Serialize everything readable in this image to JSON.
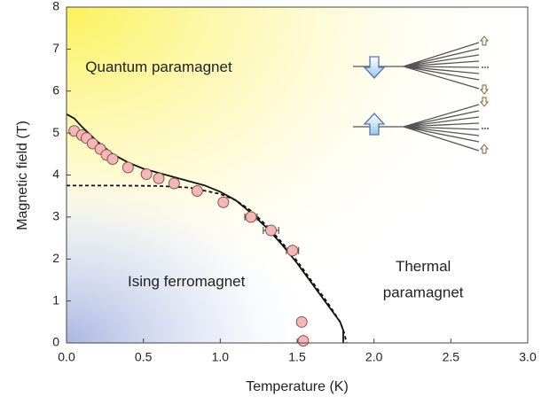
{
  "chart_data": {
    "type": "scatter",
    "x_label": "Temperature (K)",
    "y_label": "Magnetic  field (T)",
    "xlim": [
      0,
      3
    ],
    "ylim": [
      0,
      8
    ],
    "xticks": [
      {
        "value": 0,
        "label": "0.0"
      },
      0.5,
      {
        "value": 1,
        "label": "1.0"
      },
      1.5,
      {
        "value": 2,
        "label": "2.0"
      },
      2.5,
      {
        "value": 3,
        "label": "3.0"
      }
    ],
    "yticks": [
      0,
      1,
      2,
      3,
      4,
      5,
      6,
      7,
      8
    ],
    "annotations": [
      {
        "text": "Quantum paramagnet",
        "x": 0.6,
        "y": 6.55,
        "color": "#b8952e"
      },
      {
        "text": "Ising ferromagnet",
        "x": 0.78,
        "y": 1.45,
        "color": "#4a68b0"
      },
      {
        "text": "Thermal",
        "x": 2.32,
        "y": 1.8,
        "color": "#e8823a"
      },
      {
        "text": "paramagnet",
        "x": 2.32,
        "y": 1.18,
        "color": "#e8823a"
      }
    ],
    "series": [
      {
        "type": "scatter",
        "color": "#f2b8b8",
        "x": [
          0.05,
          0.1,
          0.13,
          0.17,
          0.22,
          0.26,
          0.3,
          0.4,
          0.52,
          0.6,
          0.7,
          0.85,
          1.02,
          1.2,
          1.33,
          1.47,
          1.53,
          1.54
        ],
        "values": [
          5.05,
          4.95,
          4.88,
          4.75,
          4.62,
          4.48,
          4.38,
          4.18,
          4.02,
          3.92,
          3.8,
          3.62,
          3.35,
          3.0,
          2.68,
          2.2,
          0.5,
          0.05
        ],
        "xerr": [
          null,
          null,
          null,
          null,
          null,
          null,
          null,
          null,
          null,
          null,
          null,
          null,
          null,
          0.04,
          0.05,
          0.04,
          null,
          null
        ]
      },
      {
        "type": "line",
        "color": "#111111",
        "dashed": false,
        "x": [
          0,
          0.05,
          0.1,
          0.2,
          0.3,
          0.4,
          0.5,
          0.6,
          0.7,
          0.8,
          0.9,
          1.0,
          1.1,
          1.2,
          1.3,
          1.4,
          1.5,
          1.6,
          1.7,
          1.78,
          1.8,
          1.8
        ],
        "values": [
          5.45,
          5.35,
          5.15,
          4.8,
          4.5,
          4.3,
          4.15,
          4.05,
          3.95,
          3.85,
          3.75,
          3.6,
          3.4,
          3.1,
          2.75,
          2.35,
          1.9,
          1.4,
          0.9,
          0.5,
          0.3,
          0
        ]
      },
      {
        "type": "line",
        "color": "#111111",
        "dashed": true,
        "x": [
          0,
          0.3,
          0.6,
          0.8,
          1.0,
          1.1,
          1.2,
          1.3,
          1.4,
          1.5,
          1.6,
          1.7,
          1.78,
          1.81,
          1.82
        ],
        "values": [
          3.75,
          3.75,
          3.74,
          3.7,
          3.55,
          3.4,
          3.15,
          2.8,
          2.4,
          1.95,
          1.45,
          0.95,
          0.5,
          0.2,
          0
        ]
      }
    ]
  }
}
